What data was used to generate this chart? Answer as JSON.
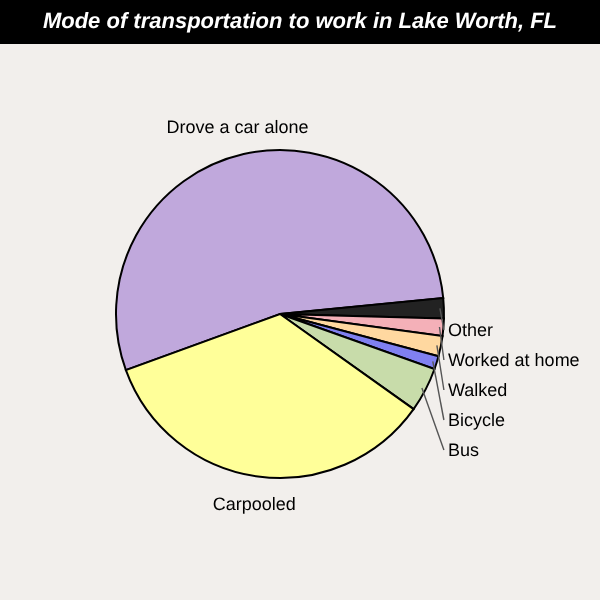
{
  "chart_data": {
    "type": "pie",
    "title": "Mode of transportation to work in Lake Worth, FL",
    "categories": [
      "Drove a car alone",
      "Other",
      "Worked at home",
      "Walked",
      "Bicycle",
      "Bus",
      "Carpooled"
    ],
    "values": [
      54,
      2,
      1.7,
      2,
      1.3,
      4.4,
      34.6
    ],
    "colors": [
      "#c0a8dc",
      "#222222",
      "#f4b0b8",
      "#ffd8a0",
      "#8080f0",
      "#c8dcaa",
      "#ffff99"
    ]
  }
}
